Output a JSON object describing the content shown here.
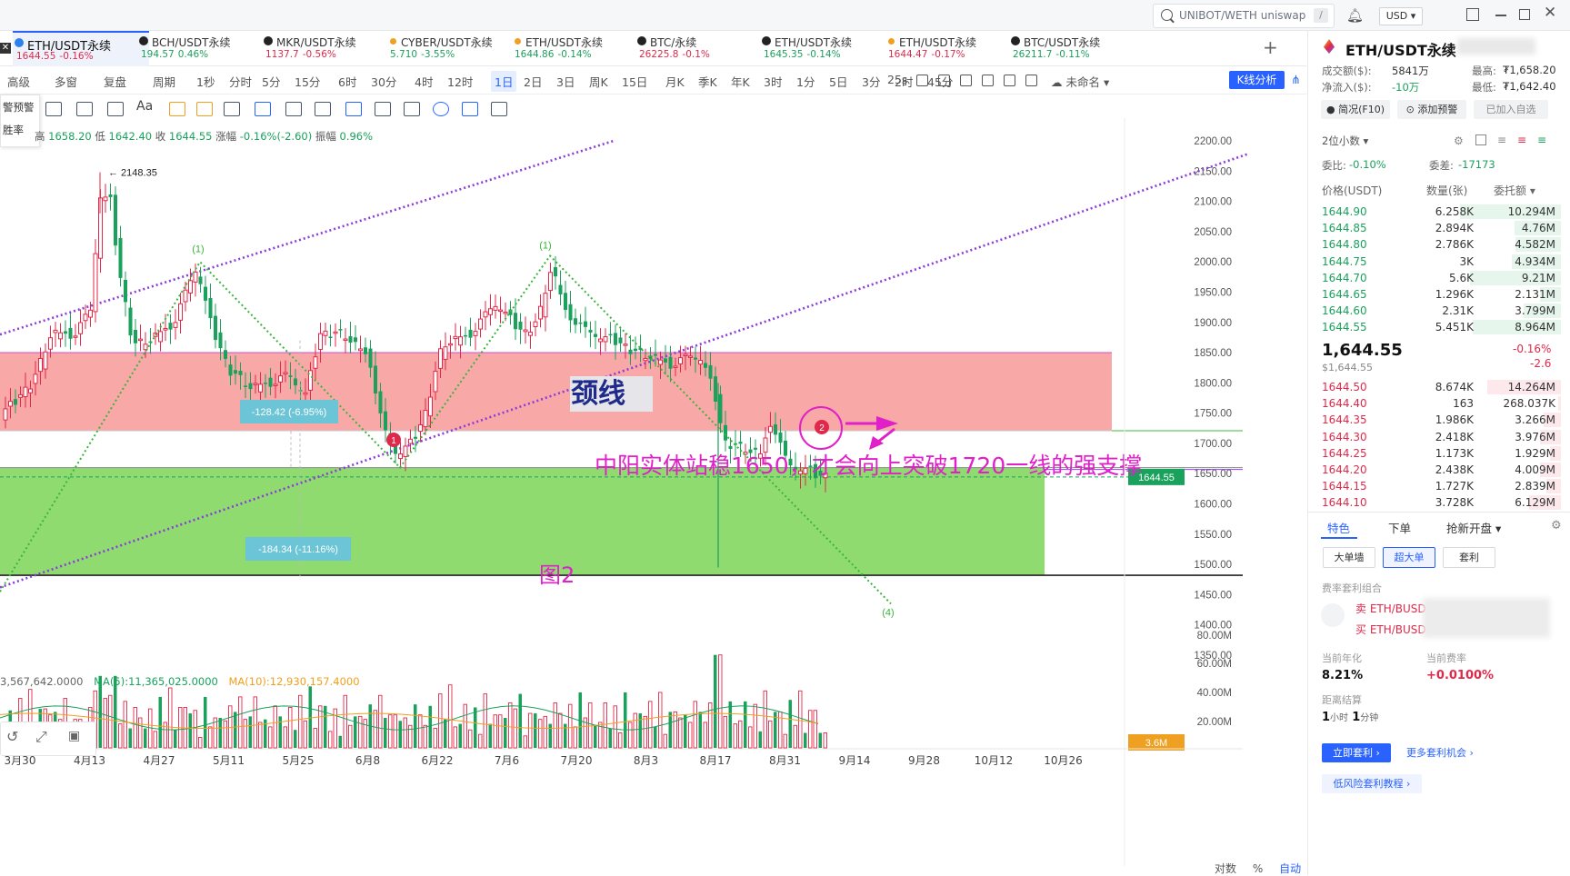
{
  "topbar": {
    "search_placeholder": "UNIBOT/WETH uniswap",
    "search_shortcut": "/",
    "currency": "USD"
  },
  "tabs": [
    {
      "name": "ETH/USDT永续",
      "price": "1644.55",
      "change": "-0.16%",
      "color": "#e0294a",
      "icon": "google-like-icon"
    },
    {
      "name": "BCH/USDT永续",
      "price": "194.57",
      "change": "0.46%",
      "color": "#1aa15c"
    },
    {
      "name": "MKR/USDT永续",
      "price": "1137.7",
      "change": "-0.56%",
      "color": "#e0294a"
    },
    {
      "name": "CYBER/USDT永续",
      "price": "5.710",
      "change": "-3.55%",
      "color": "#1aa15c"
    },
    {
      "name": "ETH/USDT永续",
      "price": "1644.86",
      "change": "-0.14%",
      "color": "#1aa15c"
    },
    {
      "name": "BTC/永续",
      "price": "26225.8",
      "change": "-0.1%",
      "color": "#e0294a"
    },
    {
      "name": "ETH/USDT永续",
      "price": "1645.35",
      "change": "-0.14%",
      "color": "#1aa15c"
    },
    {
      "name": "ETH/USDT永续",
      "price": "1644.47",
      "change": "-0.17%",
      "color": "#e0294a"
    },
    {
      "name": "BTC/USDT永续",
      "price": "26211.7",
      "change": "-0.11%",
      "color": "#1aa15c"
    }
  ],
  "toolbar": {
    "items": [
      "高级",
      "多窗",
      "复盘",
      "周期",
      "1秒",
      "分时",
      "5分",
      "15分",
      "6时",
      "30分",
      "4时",
      "12时",
      "1日",
      "2日",
      "3日",
      "周K",
      "15日",
      "月K",
      "季K",
      "年K",
      "3时",
      "1分",
      "5日",
      "3分",
      "2时",
      "45分"
    ],
    "selected": "1日",
    "countdown": "25s",
    "unnamed": "未命名",
    "kline_analysis": "K线分析"
  },
  "side_popup": {
    "line1": "警预警",
    "line2": "胜率"
  },
  "ohlc": {
    "open_label": "高",
    "high": "1658.20",
    "low_label": "低",
    "low": "1642.40",
    "close_label": "收",
    "close": "1644.55",
    "change_label": "涨幅",
    "change": "-0.16%(-2.60)",
    "amp_label": "振幅",
    "amp": "0.96%"
  },
  "chart_data": {
    "type": "candlestick",
    "price_axis": {
      "ticks": [
        2200,
        2150,
        2100,
        2050,
        2000,
        1950,
        1900,
        1850,
        1800,
        1750,
        1700,
        1650,
        1600,
        1550,
        1500,
        1450,
        1400,
        1350
      ],
      "min": 1350,
      "max": 2200
    },
    "volume_axis": {
      "ticks": [
        "80.00M",
        "60.00M",
        "40.00M",
        "20.00M"
      ]
    },
    "x_labels": [
      "3月30",
      "4月13",
      "4月27",
      "5月11",
      "5月25",
      "6月8",
      "6月22",
      "7月6",
      "7月20",
      "8月3",
      "8月17",
      "8月31",
      "9月14",
      "9月28",
      "10月12",
      "10月26"
    ],
    "current_price": "1644.55",
    "current_volume": "3.6M",
    "high_marker": "2148.35",
    "annotations": {
      "neckline": "颈线",
      "comment": "中阳实体站稳1650，才会向上突破1720一线的强支撑",
      "figure": "图2",
      "measure1": "-128.42 (-6.95%)",
      "measure2": "-184.34 (-11.16%)",
      "wave_labels": [
        "(1)",
        "(1)",
        "(4)"
      ],
      "markers": [
        "1",
        "2"
      ]
    },
    "volume_legend": {
      "vol": "3,567,642.0000",
      "ma5": "MA(5):11,365,025.0000",
      "ma10": "MA(10):12,930,157.4000"
    }
  },
  "bottom_axis_opts": {
    "log": "对数",
    "pct": "%",
    "auto": "自动"
  },
  "right_panel": {
    "symbol": "ETH/USDT永续",
    "turnover_label": "成交额($):",
    "turnover": "5841万",
    "netflow_label": "净流入($):",
    "netflow": "-10万",
    "high_label": "最高:",
    "high": "₮1,658.20",
    "low_label": "最低:",
    "low": "₮1,642.40",
    "btn_overview": "简况(F10)",
    "btn_alert": "添加预警",
    "btn_watch": "已加入自选",
    "decimals": "2位小数",
    "ratio_label": "委比:",
    "ratio": "-0.10%",
    "diff_label": "委差:",
    "diff": "-17173",
    "col_price": "价格(USDT)",
    "col_qty": "数量(张)",
    "col_total": "委托额",
    "asks": [
      {
        "p": "1644.90",
        "q": "6.258K",
        "t": "10.294M",
        "w": 0.82
      },
      {
        "p": "1644.85",
        "q": "2.894K",
        "t": "4.76M",
        "w": 0.38
      },
      {
        "p": "1644.80",
        "q": "2.786K",
        "t": "4.582M",
        "w": 0.37
      },
      {
        "p": "1644.75",
        "q": "3K",
        "t": "4.934M",
        "w": 0.4
      },
      {
        "p": "1644.70",
        "q": "5.6K",
        "t": "9.21M",
        "w": 0.74
      },
      {
        "p": "1644.65",
        "q": "1.296K",
        "t": "2.131M",
        "w": 0.17
      },
      {
        "p": "1644.60",
        "q": "2.31K",
        "t": "3.799M",
        "w": 0.3
      },
      {
        "p": "1644.55",
        "q": "5.451K",
        "t": "8.964M",
        "w": 0.72
      }
    ],
    "last_price": "1,644.55",
    "last_usd": "$1,644.55",
    "last_change_pct": "-0.16%",
    "last_change": "-2.6",
    "bids": [
      {
        "p": "1644.50",
        "q": "8.674K",
        "t": "14.264M",
        "w": 0.6
      },
      {
        "p": "1644.40",
        "q": "163",
        "t": "268.037K",
        "w": 0.02
      },
      {
        "p": "1644.35",
        "q": "1.986K",
        "t": "3.266M",
        "w": 0.14
      },
      {
        "p": "1644.30",
        "q": "2.418K",
        "t": "3.976M",
        "w": 0.17
      },
      {
        "p": "1644.25",
        "q": "1.173K",
        "t": "1.929M",
        "w": 0.09
      },
      {
        "p": "1644.20",
        "q": "2.438K",
        "t": "4.009M",
        "w": 0.17
      },
      {
        "p": "1644.15",
        "q": "1.727K",
        "t": "2.839M",
        "w": 0.12
      },
      {
        "p": "1644.10",
        "q": "3.728K",
        "t": "6.129M",
        "w": 0.26
      }
    ],
    "tab_feature": "特色",
    "tab_order": "下单",
    "tab_ipo": "抢新开盘",
    "chip_big": "大单墙",
    "chip_super": "超大单",
    "chip_arb": "套利",
    "arb_title": "费率套利组合",
    "arb_sell": "卖 ETH/BUSD",
    "arb_buy": "买 ETH/BUSD",
    "annual_label": "当前年化",
    "annual": "8.21%",
    "rate_label": "当前费率",
    "rate": "+0.0100%",
    "settle_label": "距离结算",
    "settle_h": "1",
    "settle_h_unit": "小时",
    "settle_m": "1",
    "settle_m_unit": "分钟",
    "btn_arb_now": "立即套利 ›",
    "btn_more": "更多套利机会 ›",
    "btn_tutorial": "低风险套利教程 ›"
  }
}
